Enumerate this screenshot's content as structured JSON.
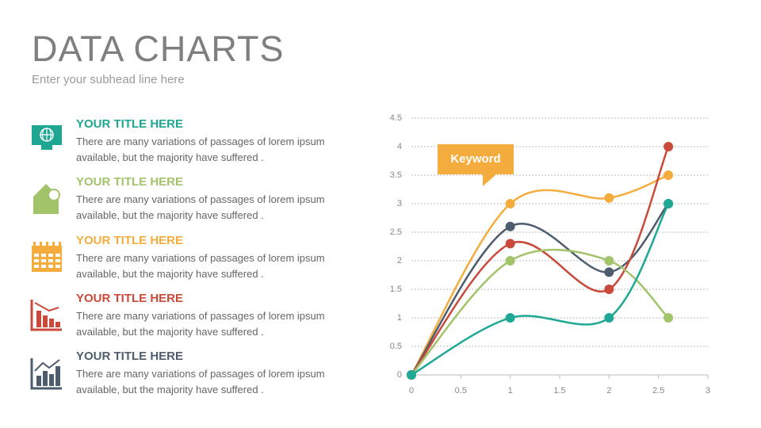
{
  "header": {
    "title": "DATA CHARTS",
    "subtitle": "Enter your subhead line here"
  },
  "items": [
    {
      "title": "YOUR TITLE HERE",
      "text": "There are many variations of passages of lorem ipsum available, but the majority have suffered .",
      "color": "#1fa693"
    },
    {
      "title": "YOUR TITLE HERE",
      "text": "There are many variations of passages of lorem ipsum available, but the majority have suffered .",
      "color": "#a3c36b"
    },
    {
      "title": "YOUR TITLE HERE",
      "text": "There are many variations of passages of lorem ipsum available, but the majority have suffered .",
      "color": "#f4ad3c"
    },
    {
      "title": "YOUR TITLE HERE",
      "text": "There are many variations of passages of lorem ipsum available, but the majority have suffered .",
      "color": "#c94a3a"
    },
    {
      "title": "YOUR TITLE HERE",
      "text": "There are many variations of passages of lorem ipsum available, but the majority have suffered .",
      "color": "#4e5d6e"
    }
  ],
  "chart_data": {
    "type": "line",
    "smooth": true,
    "annotation": "Keyword",
    "x": [
      0,
      1,
      2,
      2.6
    ],
    "series": [
      {
        "color": "#f4ad3c",
        "values": [
          0,
          3,
          3.1,
          3.5
        ]
      },
      {
        "color": "#4e5d6e",
        "values": [
          0,
          2.6,
          1.8,
          3
        ]
      },
      {
        "color": "#c94a3a",
        "values": [
          0,
          2.3,
          1.5,
          4
        ]
      },
      {
        "color": "#a3c36b",
        "values": [
          0,
          2,
          2,
          1
        ]
      },
      {
        "color": "#20a896",
        "values": [
          0,
          1,
          1,
          3
        ]
      }
    ],
    "xlim": [
      0,
      3
    ],
    "xticks": [
      0,
      0.5,
      1,
      1.5,
      2,
      2.5,
      3
    ],
    "ylim": [
      0,
      4.5
    ],
    "yticks": [
      0,
      0.5,
      1,
      1.5,
      2,
      2.5,
      3,
      3.5,
      4,
      4.5
    ],
    "grid": true
  }
}
